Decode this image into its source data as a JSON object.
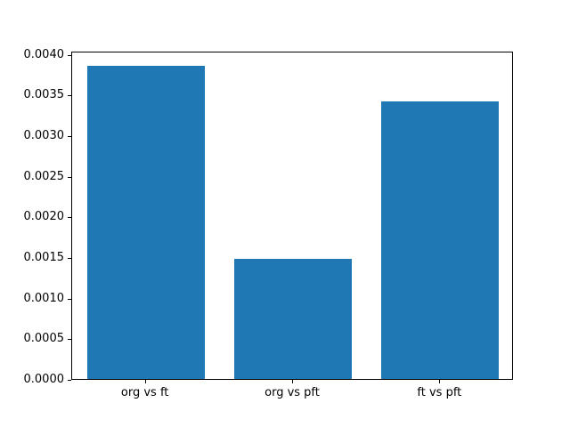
{
  "chart_data": {
    "type": "bar",
    "categories": [
      "org vs ft",
      "org vs pft",
      "ft vs pft"
    ],
    "values": [
      0.00386,
      0.00148,
      0.00342
    ],
    "ylim": [
      0,
      0.004042
    ],
    "yticks": [
      0.0,
      0.0005,
      0.001,
      0.0015,
      0.002,
      0.0025,
      0.003,
      0.0035,
      0.004
    ],
    "ytick_labels": [
      "0.0000",
      "0.0005",
      "0.0010",
      "0.0015",
      "0.0020",
      "0.0025",
      "0.0030",
      "0.0035",
      "0.0040"
    ],
    "bar_color": "#1f77b4",
    "bar_width_fraction": 0.8,
    "axis_color": "#000000",
    "background_color": "#ffffff",
    "grid": false,
    "legend": null
  }
}
